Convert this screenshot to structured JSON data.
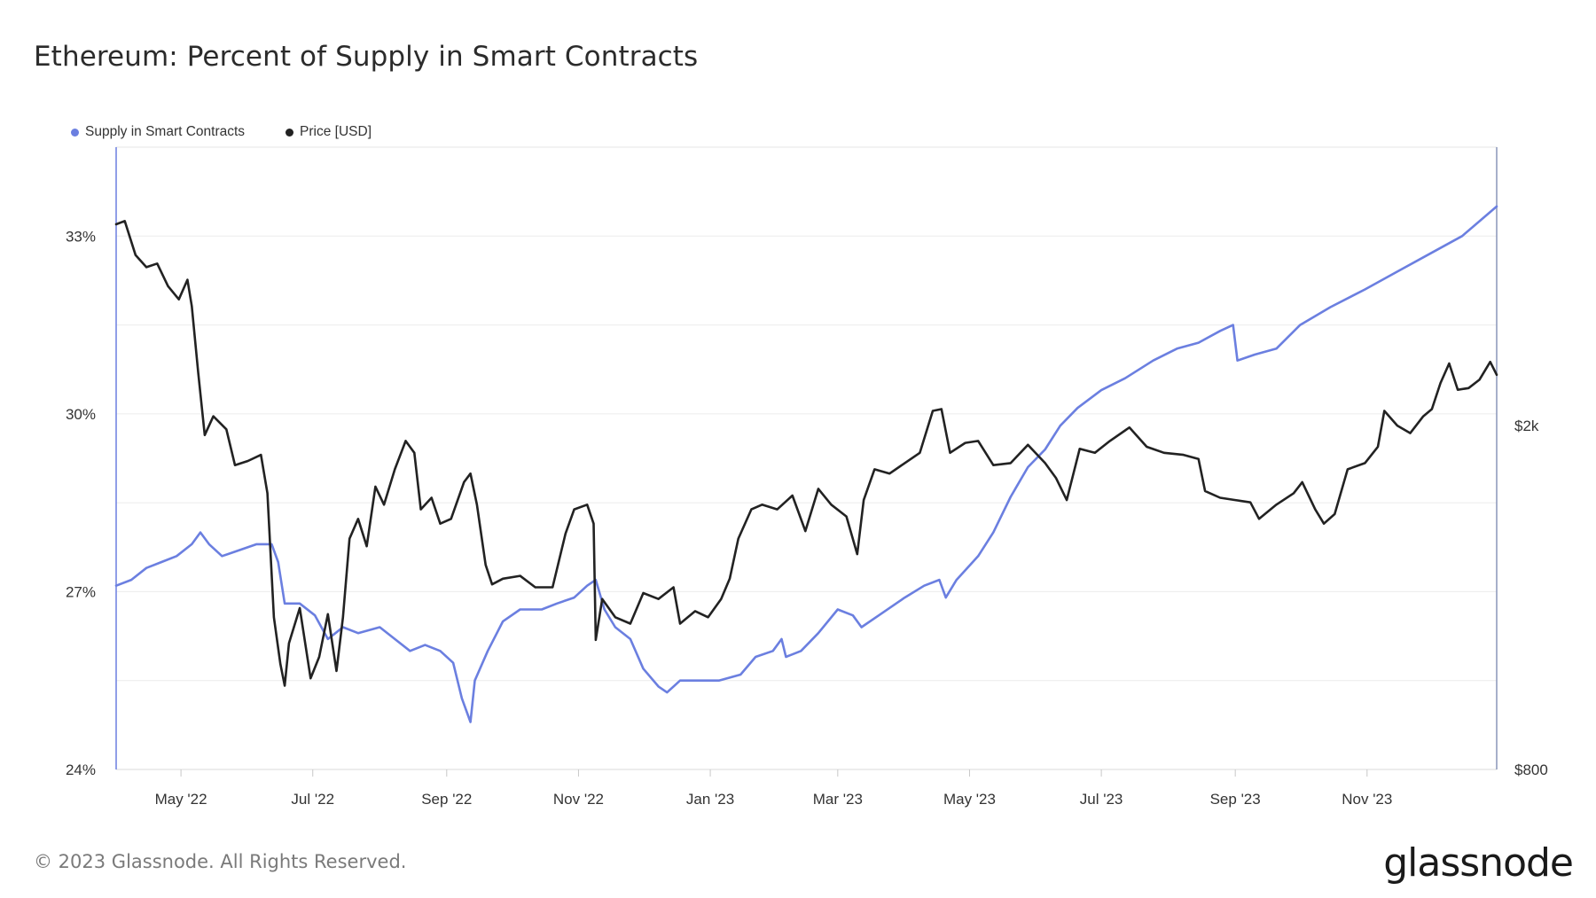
{
  "title": "Ethereum: Percent of Supply in Smart Contracts",
  "footer": "© 2023 Glassnode. All Rights Reserved.",
  "logo": "glassnode",
  "chart_data": {
    "type": "line",
    "title": "Ethereum: Percent of Supply in Smart Contracts",
    "legend_position": "top-left",
    "grid": true,
    "x_range": [
      "2022-04-01",
      "2023-12-31"
    ],
    "x_ticks": [
      {
        "date": "2022-05-01",
        "label": "May '22"
      },
      {
        "date": "2022-07-01",
        "label": "Jul '22"
      },
      {
        "date": "2022-09-01",
        "label": "Sep '22"
      },
      {
        "date": "2022-11-01",
        "label": "Nov '22"
      },
      {
        "date": "2023-01-01",
        "label": "Jan '23"
      },
      {
        "date": "2023-03-01",
        "label": "Mar '23"
      },
      {
        "date": "2023-05-01",
        "label": "May '23"
      },
      {
        "date": "2023-07-01",
        "label": "Jul '23"
      },
      {
        "date": "2023-09-01",
        "label": "Sep '23"
      },
      {
        "date": "2023-11-01",
        "label": "Nov '23"
      }
    ],
    "y_left": {
      "min": 24,
      "max": 34.5,
      "ticks": [
        {
          "value": 24,
          "label": "24%"
        },
        {
          "value": 27,
          "label": "27%"
        },
        {
          "value": 30,
          "label": "30%"
        },
        {
          "value": 33,
          "label": "33%"
        }
      ]
    },
    "y_right": {
      "scale": "log",
      "min": 800,
      "max": 4200,
      "ticks": [
        {
          "value": 800,
          "label": "$800"
        },
        {
          "value": 2000,
          "label": "$2k"
        }
      ]
    },
    "series": [
      {
        "name": "Supply in Smart Contracts",
        "axis": "left",
        "color": "#6b7fe0",
        "points": [
          [
            "2022-04-01",
            27.1
          ],
          [
            "2022-04-08",
            27.2
          ],
          [
            "2022-04-15",
            27.4
          ],
          [
            "2022-04-22",
            27.5
          ],
          [
            "2022-04-29",
            27.6
          ],
          [
            "2022-05-06",
            27.8
          ],
          [
            "2022-05-10",
            28.0
          ],
          [
            "2022-05-14",
            27.8
          ],
          [
            "2022-05-20",
            27.6
          ],
          [
            "2022-05-28",
            27.7
          ],
          [
            "2022-06-05",
            27.8
          ],
          [
            "2022-06-12",
            27.8
          ],
          [
            "2022-06-15",
            27.5
          ],
          [
            "2022-06-18",
            26.8
          ],
          [
            "2022-06-25",
            26.8
          ],
          [
            "2022-07-02",
            26.6
          ],
          [
            "2022-07-08",
            26.2
          ],
          [
            "2022-07-15",
            26.4
          ],
          [
            "2022-07-22",
            26.3
          ],
          [
            "2022-08-01",
            26.4
          ],
          [
            "2022-08-08",
            26.2
          ],
          [
            "2022-08-15",
            26.0
          ],
          [
            "2022-08-22",
            26.1
          ],
          [
            "2022-08-29",
            26.0
          ],
          [
            "2022-09-04",
            25.8
          ],
          [
            "2022-09-08",
            25.2
          ],
          [
            "2022-09-12",
            24.8
          ],
          [
            "2022-09-14",
            25.5
          ],
          [
            "2022-09-20",
            26.0
          ],
          [
            "2022-09-27",
            26.5
          ],
          [
            "2022-10-05",
            26.7
          ],
          [
            "2022-10-15",
            26.7
          ],
          [
            "2022-10-22",
            26.8
          ],
          [
            "2022-10-30",
            26.9
          ],
          [
            "2022-11-05",
            27.1
          ],
          [
            "2022-11-09",
            27.2
          ],
          [
            "2022-11-13",
            26.7
          ],
          [
            "2022-11-18",
            26.4
          ],
          [
            "2022-11-25",
            26.2
          ],
          [
            "2022-12-01",
            25.7
          ],
          [
            "2022-12-08",
            25.4
          ],
          [
            "2022-12-12",
            25.3
          ],
          [
            "2022-12-18",
            25.5
          ],
          [
            "2022-12-25",
            25.5
          ],
          [
            "2023-01-05",
            25.5
          ],
          [
            "2023-01-15",
            25.6
          ],
          [
            "2023-01-22",
            25.9
          ],
          [
            "2023-01-30",
            26.0
          ],
          [
            "2023-02-03",
            26.2
          ],
          [
            "2023-02-05",
            25.9
          ],
          [
            "2023-02-12",
            26.0
          ],
          [
            "2023-02-20",
            26.3
          ],
          [
            "2023-03-01",
            26.7
          ],
          [
            "2023-03-08",
            26.6
          ],
          [
            "2023-03-12",
            26.4
          ],
          [
            "2023-03-20",
            26.6
          ],
          [
            "2023-04-01",
            26.9
          ],
          [
            "2023-04-10",
            27.1
          ],
          [
            "2023-04-17",
            27.2
          ],
          [
            "2023-04-20",
            26.9
          ],
          [
            "2023-04-25",
            27.2
          ],
          [
            "2023-05-05",
            27.6
          ],
          [
            "2023-05-12",
            28.0
          ],
          [
            "2023-05-20",
            28.6
          ],
          [
            "2023-05-28",
            29.1
          ],
          [
            "2023-06-05",
            29.4
          ],
          [
            "2023-06-12",
            29.8
          ],
          [
            "2023-06-20",
            30.1
          ],
          [
            "2023-07-01",
            30.4
          ],
          [
            "2023-07-12",
            30.6
          ],
          [
            "2023-07-25",
            30.9
          ],
          [
            "2023-08-05",
            31.1
          ],
          [
            "2023-08-15",
            31.2
          ],
          [
            "2023-08-25",
            31.4
          ],
          [
            "2023-08-31",
            31.5
          ],
          [
            "2023-09-02",
            30.9
          ],
          [
            "2023-09-10",
            31.0
          ],
          [
            "2023-09-20",
            31.1
          ],
          [
            "2023-10-01",
            31.5
          ],
          [
            "2023-10-15",
            31.8
          ],
          [
            "2023-10-31",
            32.1
          ],
          [
            "2023-11-15",
            32.4
          ],
          [
            "2023-11-30",
            32.7
          ],
          [
            "2023-12-15",
            33.0
          ],
          [
            "2023-12-31",
            33.5
          ]
        ]
      },
      {
        "name": "Price [USD]",
        "axis": "right",
        "color": "#222222",
        "points": [
          [
            "2022-04-01",
            3420
          ],
          [
            "2022-04-05",
            3450
          ],
          [
            "2022-04-10",
            3150
          ],
          [
            "2022-04-15",
            3050
          ],
          [
            "2022-04-20",
            3080
          ],
          [
            "2022-04-25",
            2900
          ],
          [
            "2022-04-30",
            2800
          ],
          [
            "2022-05-04",
            2950
          ],
          [
            "2022-05-06",
            2750
          ],
          [
            "2022-05-09",
            2300
          ],
          [
            "2022-05-12",
            1950
          ],
          [
            "2022-05-16",
            2050
          ],
          [
            "2022-05-22",
            1980
          ],
          [
            "2022-05-26",
            1800
          ],
          [
            "2022-06-01",
            1820
          ],
          [
            "2022-06-07",
            1850
          ],
          [
            "2022-06-10",
            1670
          ],
          [
            "2022-06-13",
            1200
          ],
          [
            "2022-06-16",
            1060
          ],
          [
            "2022-06-18",
            1000
          ],
          [
            "2022-06-20",
            1120
          ],
          [
            "2022-06-25",
            1230
          ],
          [
            "2022-06-30",
            1020
          ],
          [
            "2022-07-04",
            1080
          ],
          [
            "2022-07-08",
            1210
          ],
          [
            "2022-07-12",
            1040
          ],
          [
            "2022-07-15",
            1200
          ],
          [
            "2022-07-18",
            1480
          ],
          [
            "2022-07-22",
            1560
          ],
          [
            "2022-07-26",
            1450
          ],
          [
            "2022-07-30",
            1700
          ],
          [
            "2022-08-03",
            1620
          ],
          [
            "2022-08-08",
            1780
          ],
          [
            "2022-08-13",
            1920
          ],
          [
            "2022-08-17",
            1860
          ],
          [
            "2022-08-20",
            1600
          ],
          [
            "2022-08-25",
            1650
          ],
          [
            "2022-08-29",
            1540
          ],
          [
            "2022-09-03",
            1560
          ],
          [
            "2022-09-09",
            1720
          ],
          [
            "2022-09-12",
            1760
          ],
          [
            "2022-09-15",
            1620
          ],
          [
            "2022-09-19",
            1380
          ],
          [
            "2022-09-22",
            1310
          ],
          [
            "2022-09-27",
            1330
          ],
          [
            "2022-10-05",
            1340
          ],
          [
            "2022-10-12",
            1300
          ],
          [
            "2022-10-20",
            1300
          ],
          [
            "2022-10-26",
            1500
          ],
          [
            "2022-10-30",
            1600
          ],
          [
            "2022-11-05",
            1620
          ],
          [
            "2022-11-08",
            1540
          ],
          [
            "2022-11-09",
            1130
          ],
          [
            "2022-11-12",
            1260
          ],
          [
            "2022-11-18",
            1200
          ],
          [
            "2022-11-25",
            1180
          ],
          [
            "2022-12-01",
            1280
          ],
          [
            "2022-12-08",
            1260
          ],
          [
            "2022-12-15",
            1300
          ],
          [
            "2022-12-18",
            1180
          ],
          [
            "2022-12-25",
            1220
          ],
          [
            "2022-12-31",
            1200
          ],
          [
            "2023-01-06",
            1260
          ],
          [
            "2023-01-10",
            1330
          ],
          [
            "2023-01-14",
            1480
          ],
          [
            "2023-01-20",
            1600
          ],
          [
            "2023-01-25",
            1620
          ],
          [
            "2023-02-01",
            1600
          ],
          [
            "2023-02-08",
            1660
          ],
          [
            "2023-02-14",
            1510
          ],
          [
            "2023-02-20",
            1690
          ],
          [
            "2023-02-26",
            1620
          ],
          [
            "2023-03-05",
            1570
          ],
          [
            "2023-03-10",
            1420
          ],
          [
            "2023-03-13",
            1640
          ],
          [
            "2023-03-18",
            1780
          ],
          [
            "2023-03-25",
            1760
          ],
          [
            "2023-04-01",
            1810
          ],
          [
            "2023-04-08",
            1860
          ],
          [
            "2023-04-14",
            2080
          ],
          [
            "2023-04-18",
            2090
          ],
          [
            "2023-04-22",
            1860
          ],
          [
            "2023-04-29",
            1910
          ],
          [
            "2023-05-05",
            1920
          ],
          [
            "2023-05-12",
            1800
          ],
          [
            "2023-05-20",
            1810
          ],
          [
            "2023-05-28",
            1900
          ],
          [
            "2023-06-05",
            1810
          ],
          [
            "2023-06-10",
            1740
          ],
          [
            "2023-06-15",
            1640
          ],
          [
            "2023-06-21",
            1880
          ],
          [
            "2023-06-28",
            1860
          ],
          [
            "2023-07-05",
            1920
          ],
          [
            "2023-07-14",
            1990
          ],
          [
            "2023-07-22",
            1890
          ],
          [
            "2023-07-30",
            1860
          ],
          [
            "2023-08-08",
            1850
          ],
          [
            "2023-08-15",
            1830
          ],
          [
            "2023-08-18",
            1680
          ],
          [
            "2023-08-25",
            1650
          ],
          [
            "2023-09-01",
            1640
          ],
          [
            "2023-09-08",
            1630
          ],
          [
            "2023-09-12",
            1560
          ],
          [
            "2023-09-20",
            1620
          ],
          [
            "2023-09-28",
            1670
          ],
          [
            "2023-10-02",
            1720
          ],
          [
            "2023-10-08",
            1600
          ],
          [
            "2023-10-12",
            1540
          ],
          [
            "2023-10-17",
            1580
          ],
          [
            "2023-10-23",
            1780
          ],
          [
            "2023-10-31",
            1810
          ],
          [
            "2023-11-06",
            1890
          ],
          [
            "2023-11-09",
            2080
          ],
          [
            "2023-11-15",
            2000
          ],
          [
            "2023-11-21",
            1960
          ],
          [
            "2023-11-27",
            2050
          ],
          [
            "2023-12-01",
            2090
          ],
          [
            "2023-12-05",
            2240
          ],
          [
            "2023-12-09",
            2360
          ],
          [
            "2023-12-13",
            2200
          ],
          [
            "2023-12-18",
            2210
          ],
          [
            "2023-12-23",
            2260
          ],
          [
            "2023-12-28",
            2370
          ],
          [
            "2023-12-31",
            2290
          ]
        ]
      }
    ]
  }
}
